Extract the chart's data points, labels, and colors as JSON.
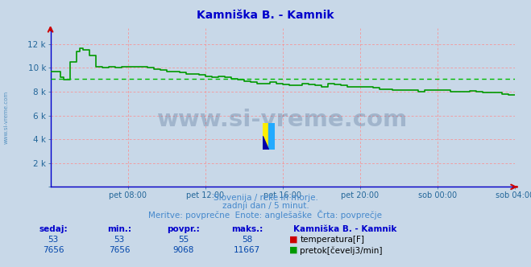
{
  "title": "Kamniška B. - Kamnik",
  "title_color": "#0000cc",
  "bg_color": "#c8d8e8",
  "plot_bg_color": "#c8d8e8",
  "xticklabels": [
    "pet 08:00",
    "pet 12:00",
    "pet 16:00",
    "pet 20:00",
    "sob 00:00",
    "sob 04:00"
  ],
  "xtick_positions": [
    48,
    96,
    144,
    192,
    240,
    288
  ],
  "total_points": 289,
  "ylim": [
    0,
    13334
  ],
  "yticks": [
    0,
    2000,
    4000,
    6000,
    8000,
    10000,
    12000
  ],
  "avg_line_value": 9068,
  "avg_line_color": "#00bb00",
  "flow_color": "#009900",
  "temp_color": "#cc0000",
  "temp_value": 53,
  "grid_color": "#ff8888",
  "subtitle1": "Slovenija / reke in morje.",
  "subtitle2": "zadnji dan / 5 minut.",
  "subtitle3": "Meritve: povprečne  Enote: anglešaške  Črta: povprečje",
  "subtitle_color": "#4488cc",
  "table_header_color": "#0000cc",
  "table_data_color": "#0044aa",
  "station_label": "Kamniška B. - Kamnik",
  "sedaj_flow": 7656,
  "min_flow": 7656,
  "povpr_flow": 9068,
  "maks_flow": 11667,
  "sedaj_temp": 53,
  "min_temp": 53,
  "povpr_temp": 55,
  "maks_temp": 58,
  "watermark_text": "www.si-vreme.com",
  "watermark_color": "#1a3a7a",
  "left_text": "www.si-vreme.com",
  "left_text_color": "#4488bb",
  "axis_line_color": "#0000ff",
  "axis_arrow_color": "#cc0000"
}
